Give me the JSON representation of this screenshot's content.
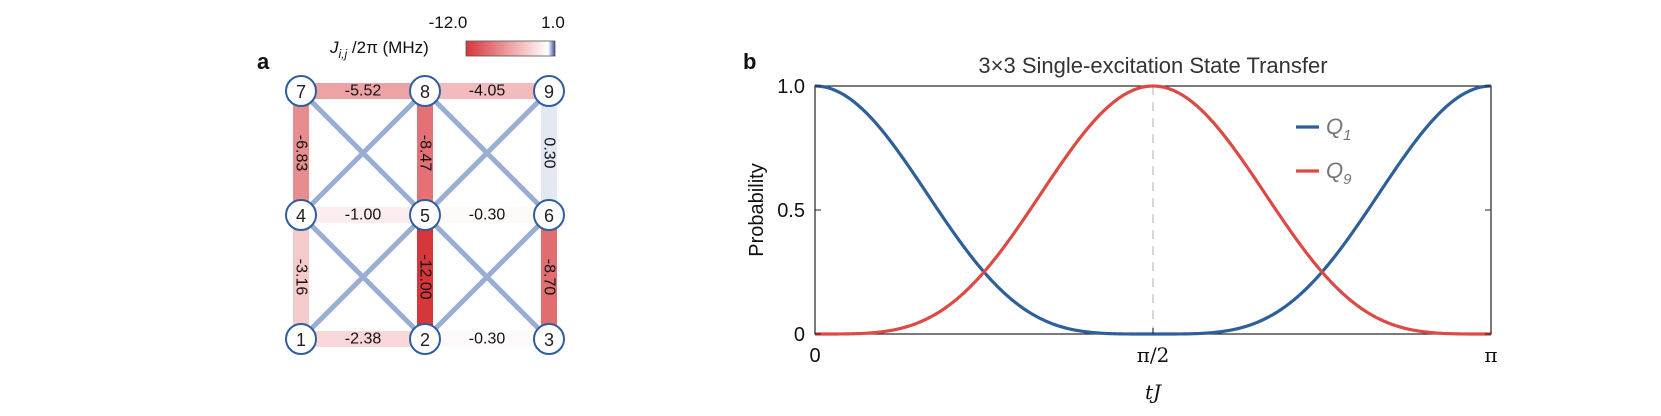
{
  "panel_a": {
    "label": "a",
    "colorbar": {
      "label_main": "J",
      "label_sub": "i,j",
      "label_rest": " /2π (MHz)",
      "min_label": "-12.0",
      "max_label": "1.0",
      "min": -12.0,
      "max": 1.0,
      "color_low": "#d7363b",
      "color_mid": "#ffffff",
      "color_high": "#2f4ea0"
    },
    "nodes": [
      {
        "id": 1,
        "label": "1",
        "row": 0,
        "col": 0
      },
      {
        "id": 2,
        "label": "2",
        "row": 0,
        "col": 1
      },
      {
        "id": 3,
        "label": "3",
        "row": 0,
        "col": 2
      },
      {
        "id": 4,
        "label": "4",
        "row": 1,
        "col": 0
      },
      {
        "id": 5,
        "label": "5",
        "row": 1,
        "col": 1
      },
      {
        "id": 6,
        "label": "6",
        "row": 1,
        "col": 2
      },
      {
        "id": 7,
        "label": "7",
        "row": 2,
        "col": 0
      },
      {
        "id": 8,
        "label": "8",
        "row": 2,
        "col": 1
      },
      {
        "id": 9,
        "label": "9",
        "row": 2,
        "col": 2
      }
    ],
    "edges": [
      {
        "from": 7,
        "to": 8,
        "value": -5.52,
        "label": "-5.52",
        "orient": "h"
      },
      {
        "from": 8,
        "to": 9,
        "value": -4.05,
        "label": "-4.05",
        "orient": "h"
      },
      {
        "from": 4,
        "to": 5,
        "value": -1.0,
        "label": "-1.00",
        "orient": "h"
      },
      {
        "from": 5,
        "to": 6,
        "value": -0.3,
        "label": "-0.30",
        "orient": "h"
      },
      {
        "from": 1,
        "to": 2,
        "value": -2.38,
        "label": "-2.38",
        "orient": "h"
      },
      {
        "from": 2,
        "to": 3,
        "value": -0.3,
        "label": "-0.30",
        "orient": "h"
      },
      {
        "from": 7,
        "to": 4,
        "value": -6.83,
        "label": "-6.83",
        "orient": "v"
      },
      {
        "from": 4,
        "to": 1,
        "value": -3.16,
        "label": "-3.16",
        "orient": "v"
      },
      {
        "from": 8,
        "to": 5,
        "value": -8.47,
        "label": "-8.47",
        "orient": "v"
      },
      {
        "from": 5,
        "to": 2,
        "value": -12.0,
        "label": "-12.00",
        "orient": "v"
      },
      {
        "from": 9,
        "to": 6,
        "value": 0.3,
        "label": "0.30",
        "orient": "v"
      },
      {
        "from": 6,
        "to": 3,
        "value": -8.7,
        "label": "-8.70",
        "orient": "v"
      }
    ],
    "diagonal_pairs": [
      [
        7,
        5
      ],
      [
        8,
        4
      ],
      [
        8,
        6
      ],
      [
        9,
        5
      ],
      [
        4,
        2
      ],
      [
        5,
        1
      ],
      [
        5,
        3
      ],
      [
        6,
        2
      ]
    ],
    "diagonal_color": "#9aaed4"
  },
  "panel_b": {
    "label": "b",
    "chart_data": {
      "type": "line",
      "title": "3×3 Single-excitation State Transfer",
      "xlabel": "tJ",
      "ylabel": "Probability",
      "xlim": [
        0,
        3.14159
      ],
      "ylim": [
        0,
        1
      ],
      "xticks": [
        {
          "value": 0,
          "label": "0"
        },
        {
          "value": 1.5708,
          "label": "π/2"
        },
        {
          "value": 3.14159,
          "label": "π"
        }
      ],
      "yticks": [
        {
          "value": 0,
          "label": "0"
        },
        {
          "value": 0.5,
          "label": "0.5"
        },
        {
          "value": 1,
          "label": "1.0"
        }
      ],
      "vline": {
        "x": 1.5708,
        "style": "dashed",
        "color": "#cccccc"
      },
      "legend_position": "top-right",
      "series": [
        {
          "name": "Q",
          "sub": "1",
          "color": "#2e5f9b",
          "function": "cos4"
        },
        {
          "name": "Q",
          "sub": "9",
          "color": "#dc4a45",
          "function": "sin4"
        }
      ]
    }
  }
}
